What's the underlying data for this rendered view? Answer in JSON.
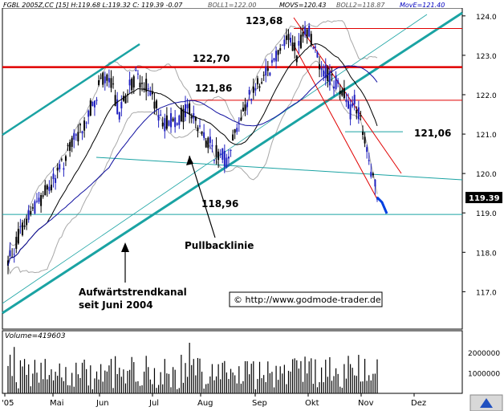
{
  "header": {
    "info": "FGBL 2005Z,CC [15] H:119.68 L:119.32 C: 119.39 -0.07",
    "boll1": "BOLL1=122.00",
    "movs": "MOVS=120.43",
    "boll2": "BOLL2=118.87",
    "move": "MovE=121.40"
  },
  "price_badge": "119.39",
  "watermark": "© http://www.godmode-trader.de",
  "annotations": {
    "high": "123,68",
    "resistance": "122,70",
    "level_12186": "121,86",
    "level_12106": "121,06",
    "support": "118,96",
    "pullback": "Pullbacklinie",
    "channel_line1": "Aufwärtstrendkanal",
    "channel_line2": "seit Juni 2004"
  },
  "volume_label": "Volume=419603",
  "colors": {
    "up_candle": "#2020c0",
    "down_candle": "#000000",
    "resistance_line": "#e00000",
    "trend_line": "#1aa3a3",
    "moving_avg": "#1010a0",
    "bollinger": "#a8a8a8",
    "blue_highlight": "#0040e0",
    "magenta_highlight": "#d020d0"
  },
  "chart_data": {
    "type": "candlestick",
    "instrument": "FGBL 2005Z",
    "x_ticks": [
      "'05",
      "Mai",
      "Jun",
      "Jul",
      "Aug",
      "Sep",
      "Okt",
      "Nov",
      "Dez"
    ],
    "y_ticks": [
      117.0,
      118.0,
      119.0,
      120.0,
      121.0,
      122.0,
      123.0,
      124.0
    ],
    "ylim": [
      116.05,
      124.2
    ],
    "volume_ticks": [
      "1000000",
      "2000000"
    ],
    "volume_max": 2600000,
    "horizontal_levels": [
      {
        "value": 122.7,
        "label": "122,70"
      },
      {
        "value": 121.86,
        "label": "121,86"
      },
      {
        "value": 121.06,
        "label": "121,06"
      },
      {
        "value": 118.96,
        "label": "118,96"
      },
      {
        "value": 123.68,
        "label": "123,68"
      }
    ],
    "last_close": 119.39
  }
}
